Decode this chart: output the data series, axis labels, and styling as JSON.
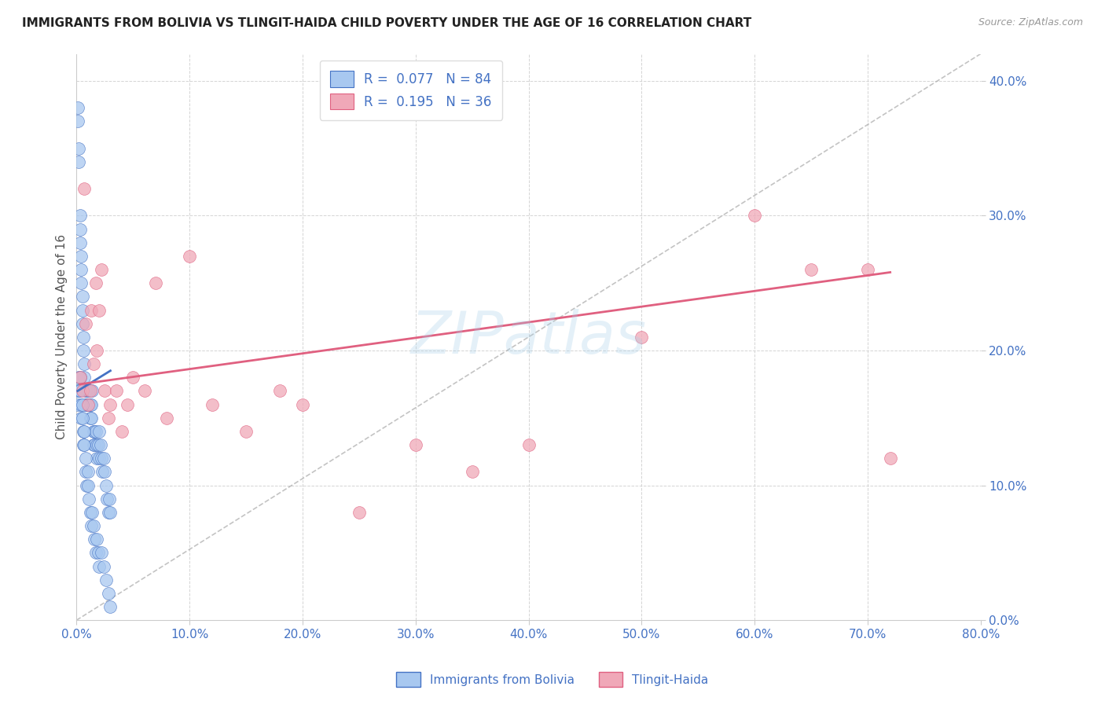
{
  "title": "IMMIGRANTS FROM BOLIVIA VS TLINGIT-HAIDA CHILD POVERTY UNDER THE AGE OF 16 CORRELATION CHART",
  "source": "Source: ZipAtlas.com",
  "ylabel": "Child Poverty Under the Age of 16",
  "legend_label1": "Immigrants from Bolivia",
  "legend_label2": "Tlingit-Haida",
  "r1": "0.077",
  "n1": "84",
  "r2": "0.195",
  "n2": "36",
  "watermark": "ZIPatlas",
  "xlim": [
    0.0,
    0.8
  ],
  "ylim": [
    0.0,
    0.42
  ],
  "yticks": [
    0.0,
    0.1,
    0.2,
    0.3,
    0.4
  ],
  "xticks": [
    0.0,
    0.1,
    0.2,
    0.3,
    0.4,
    0.5,
    0.6,
    0.7,
    0.8
  ],
  "color_blue": "#a8c8f0",
  "color_pink": "#f0a8b8",
  "color_blue_line": "#4472c4",
  "color_pink_line": "#e06080",
  "color_axis_labels": "#4472c4",
  "blue_x": [
    0.001,
    0.001,
    0.002,
    0.002,
    0.003,
    0.003,
    0.003,
    0.004,
    0.004,
    0.004,
    0.005,
    0.005,
    0.005,
    0.006,
    0.006,
    0.007,
    0.007,
    0.008,
    0.008,
    0.009,
    0.009,
    0.01,
    0.01,
    0.011,
    0.011,
    0.012,
    0.012,
    0.013,
    0.013,
    0.014,
    0.015,
    0.015,
    0.016,
    0.016,
    0.017,
    0.018,
    0.018,
    0.019,
    0.02,
    0.02,
    0.021,
    0.022,
    0.023,
    0.024,
    0.025,
    0.026,
    0.027,
    0.028,
    0.029,
    0.03,
    0.001,
    0.001,
    0.002,
    0.002,
    0.003,
    0.003,
    0.004,
    0.004,
    0.005,
    0.005,
    0.006,
    0.006,
    0.007,
    0.007,
    0.008,
    0.008,
    0.009,
    0.01,
    0.01,
    0.011,
    0.012,
    0.013,
    0.014,
    0.015,
    0.016,
    0.017,
    0.018,
    0.019,
    0.02,
    0.022,
    0.024,
    0.026,
    0.028,
    0.03
  ],
  "blue_y": [
    0.38,
    0.37,
    0.35,
    0.34,
    0.3,
    0.29,
    0.28,
    0.27,
    0.26,
    0.25,
    0.24,
    0.23,
    0.22,
    0.21,
    0.2,
    0.19,
    0.18,
    0.17,
    0.16,
    0.17,
    0.16,
    0.17,
    0.16,
    0.17,
    0.16,
    0.15,
    0.16,
    0.15,
    0.16,
    0.17,
    0.14,
    0.13,
    0.14,
    0.13,
    0.14,
    0.13,
    0.12,
    0.13,
    0.12,
    0.14,
    0.13,
    0.12,
    0.11,
    0.12,
    0.11,
    0.1,
    0.09,
    0.08,
    0.09,
    0.08,
    0.17,
    0.16,
    0.18,
    0.17,
    0.18,
    0.17,
    0.16,
    0.15,
    0.16,
    0.15,
    0.14,
    0.13,
    0.14,
    0.13,
    0.12,
    0.11,
    0.1,
    0.11,
    0.1,
    0.09,
    0.08,
    0.07,
    0.08,
    0.07,
    0.06,
    0.05,
    0.06,
    0.05,
    0.04,
    0.05,
    0.04,
    0.03,
    0.02,
    0.01
  ],
  "pink_x": [
    0.003,
    0.005,
    0.007,
    0.008,
    0.01,
    0.012,
    0.013,
    0.015,
    0.017,
    0.018,
    0.02,
    0.022,
    0.025,
    0.028,
    0.03,
    0.035,
    0.04,
    0.045,
    0.05,
    0.06,
    0.07,
    0.08,
    0.1,
    0.12,
    0.15,
    0.18,
    0.2,
    0.25,
    0.3,
    0.35,
    0.4,
    0.5,
    0.6,
    0.65,
    0.7,
    0.72
  ],
  "pink_y": [
    0.18,
    0.17,
    0.32,
    0.22,
    0.16,
    0.17,
    0.23,
    0.19,
    0.25,
    0.2,
    0.23,
    0.26,
    0.17,
    0.15,
    0.16,
    0.17,
    0.14,
    0.16,
    0.18,
    0.17,
    0.25,
    0.15,
    0.27,
    0.16,
    0.14,
    0.17,
    0.16,
    0.08,
    0.13,
    0.11,
    0.13,
    0.21,
    0.3,
    0.26,
    0.26,
    0.12
  ],
  "blue_trend_x": [
    0.001,
    0.03
  ],
  "blue_trend_y": [
    0.17,
    0.185
  ],
  "pink_trend_x": [
    0.003,
    0.72
  ],
  "pink_trend_y": [
    0.175,
    0.258
  ]
}
